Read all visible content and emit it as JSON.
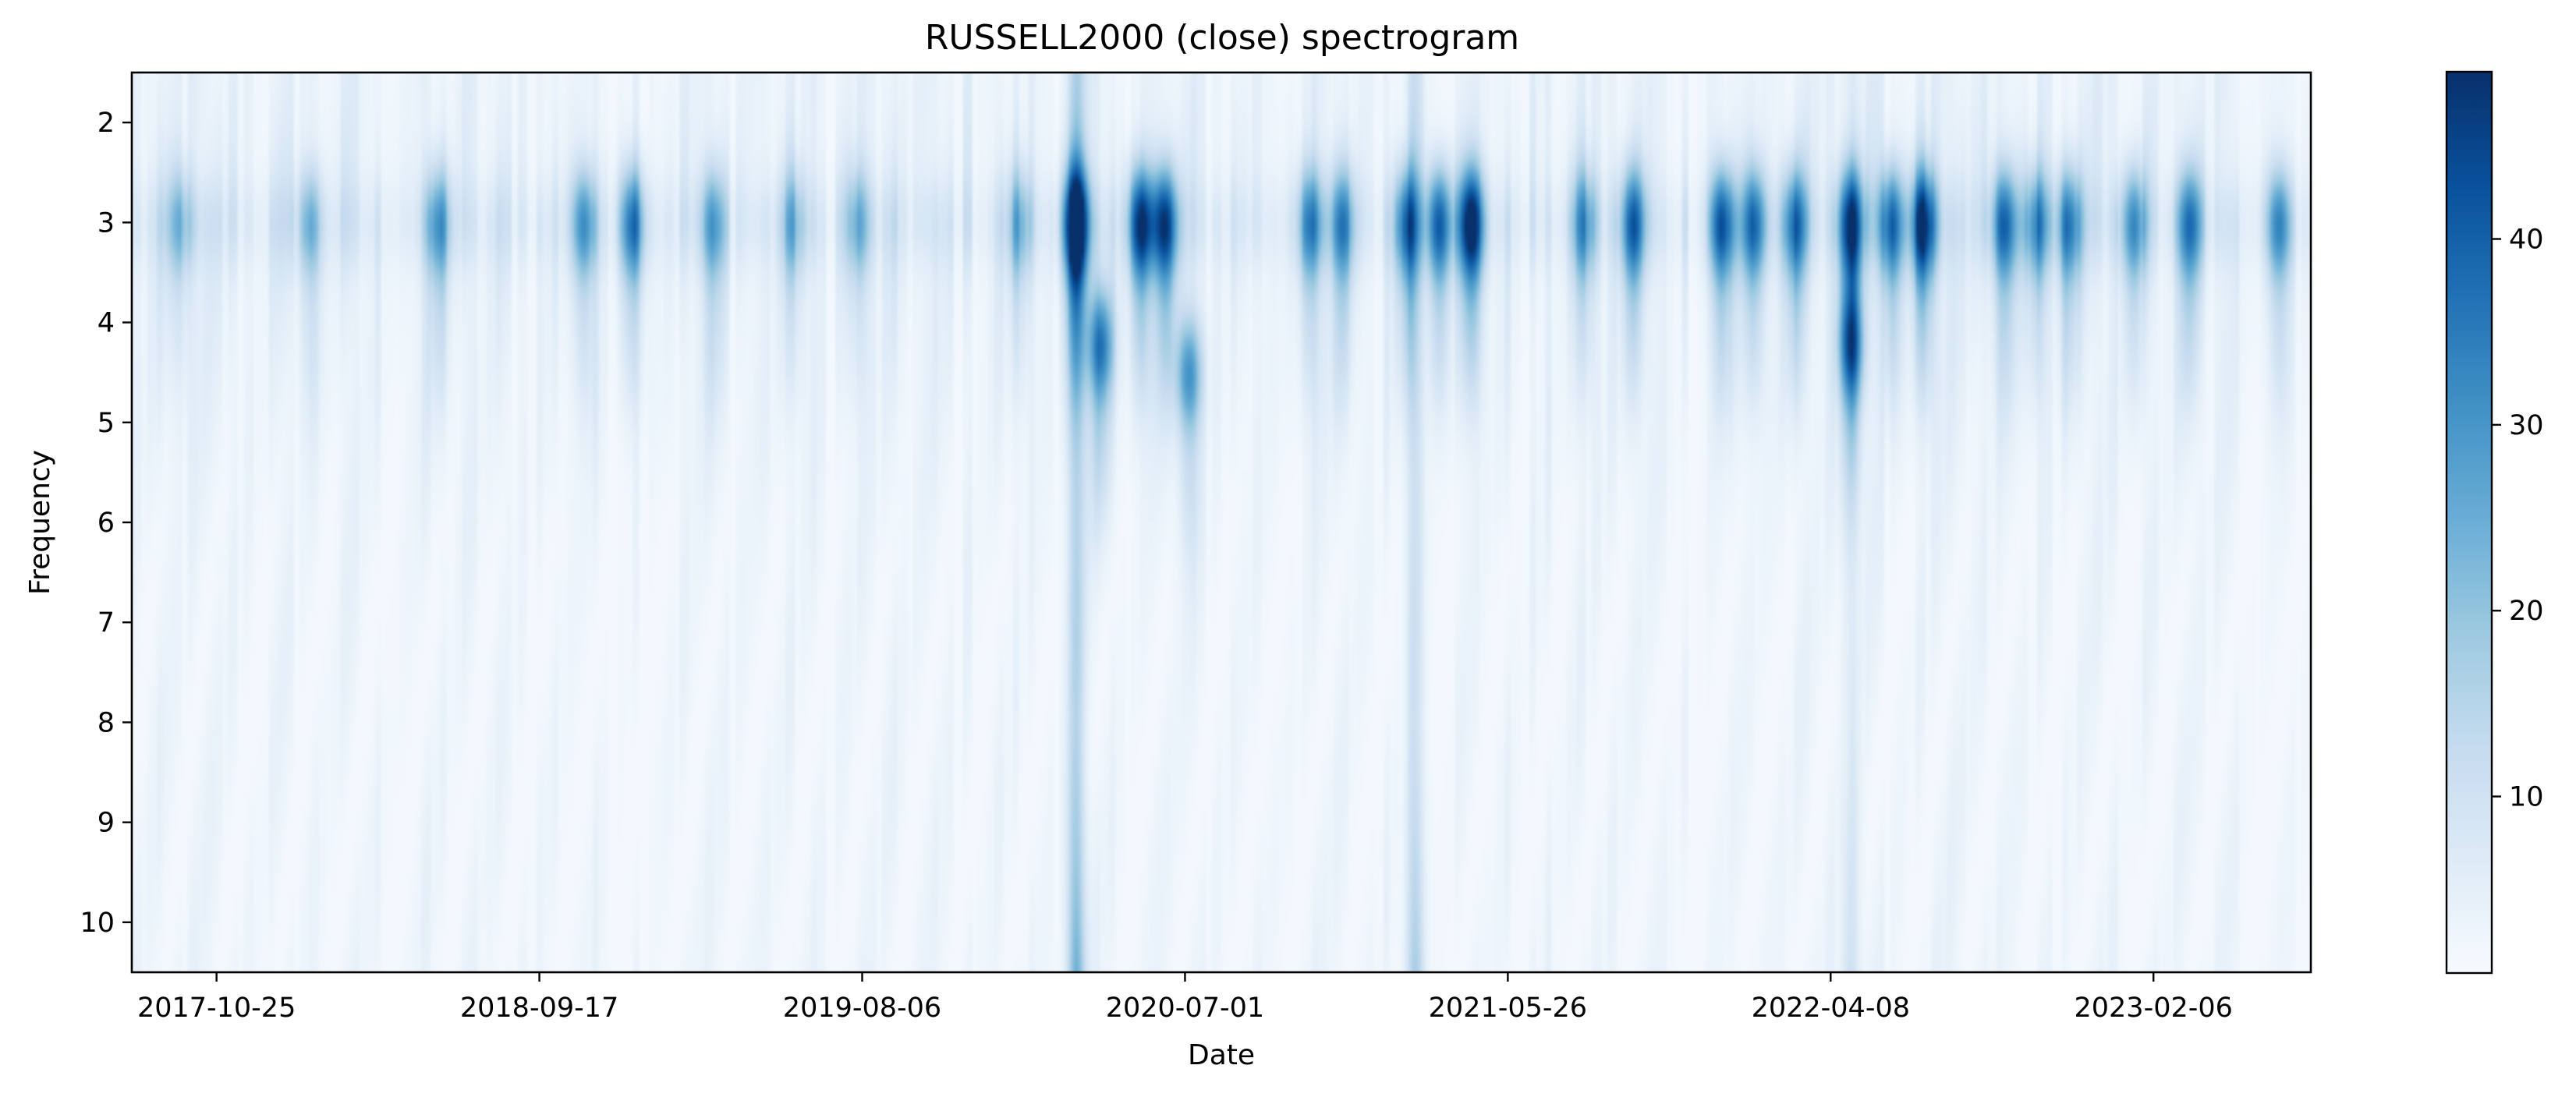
{
  "chart_data": {
    "type": "heatmap",
    "title": "RUSSELL2000 (close) spectrogram",
    "xlabel": "Date",
    "ylabel": "Frequency",
    "x_tick_labels": [
      "2017-10-25",
      "2018-09-17",
      "2019-08-06",
      "2020-07-01",
      "2021-05-26",
      "2022-04-08",
      "2023-02-06"
    ],
    "x_tick_index": [
      10,
      50,
      90,
      130,
      170,
      210,
      250
    ],
    "x_count": 270,
    "y_ticks": [
      2,
      3,
      4,
      5,
      6,
      7,
      8,
      9,
      10
    ],
    "ylim": [
      1.5,
      10.5
    ],
    "colorbar": {
      "ticks": [
        10,
        20,
        30,
        40
      ],
      "range": [
        0.5,
        49
      ],
      "colormap": "Blues"
    },
    "colormap_stops": [
      "#f7fbff",
      "#deebf7",
      "#c6dbef",
      "#9ecae1",
      "#6baed6",
      "#4292c6",
      "#2171b5",
      "#08519c",
      "#08306b"
    ],
    "bursts": [
      {
        "x": 6,
        "f": 3.0,
        "mag": 14
      },
      {
        "x": 22,
        "f": 3.0,
        "mag": 15
      },
      {
        "x": 38,
        "f": 3.0,
        "mag": 20
      },
      {
        "x": 56,
        "f": 3.0,
        "mag": 22
      },
      {
        "x": 62,
        "f": 3.0,
        "mag": 28
      },
      {
        "x": 72,
        "f": 3.0,
        "mag": 18
      },
      {
        "x": 82,
        "f": 3.0,
        "mag": 14
      },
      {
        "x": 90,
        "f": 3.0,
        "mag": 15
      },
      {
        "x": 110,
        "f": 3.0,
        "mag": 16
      },
      {
        "x": 117,
        "f": 3.0,
        "mag": 45
      },
      {
        "x": 120,
        "f": 4.2,
        "mag": 28
      },
      {
        "x": 125,
        "f": 3.0,
        "mag": 38
      },
      {
        "x": 128,
        "f": 3.0,
        "mag": 34
      },
      {
        "x": 131,
        "f": 4.5,
        "mag": 24
      },
      {
        "x": 146,
        "f": 3.0,
        "mag": 24
      },
      {
        "x": 150,
        "f": 3.0,
        "mag": 22
      },
      {
        "x": 158,
        "f": 3.0,
        "mag": 30
      },
      {
        "x": 162,
        "f": 3.0,
        "mag": 32
      },
      {
        "x": 166,
        "f": 3.0,
        "mag": 40
      },
      {
        "x": 180,
        "f": 3.0,
        "mag": 20
      },
      {
        "x": 186,
        "f": 3.0,
        "mag": 28
      },
      {
        "x": 197,
        "f": 3.0,
        "mag": 32
      },
      {
        "x": 201,
        "f": 3.0,
        "mag": 28
      },
      {
        "x": 206,
        "f": 3.0,
        "mag": 26
      },
      {
        "x": 213,
        "f": 3.0,
        "mag": 38
      },
      {
        "x": 213,
        "f": 4.2,
        "mag": 26
      },
      {
        "x": 218,
        "f": 3.0,
        "mag": 30
      },
      {
        "x": 222,
        "f": 3.0,
        "mag": 38
      },
      {
        "x": 232,
        "f": 3.0,
        "mag": 28
      },
      {
        "x": 236,
        "f": 3.0,
        "mag": 24
      },
      {
        "x": 240,
        "f": 3.0,
        "mag": 26
      },
      {
        "x": 248,
        "f": 3.0,
        "mag": 24
      },
      {
        "x": 255,
        "f": 3.0,
        "mag": 24
      },
      {
        "x": 266,
        "f": 3.0,
        "mag": 24
      }
    ],
    "vertical_streaks": [
      {
        "x": 117,
        "mag": 26
      },
      {
        "x": 159,
        "mag": 18
      },
      {
        "x": 213,
        "mag": 10
      }
    ]
  }
}
